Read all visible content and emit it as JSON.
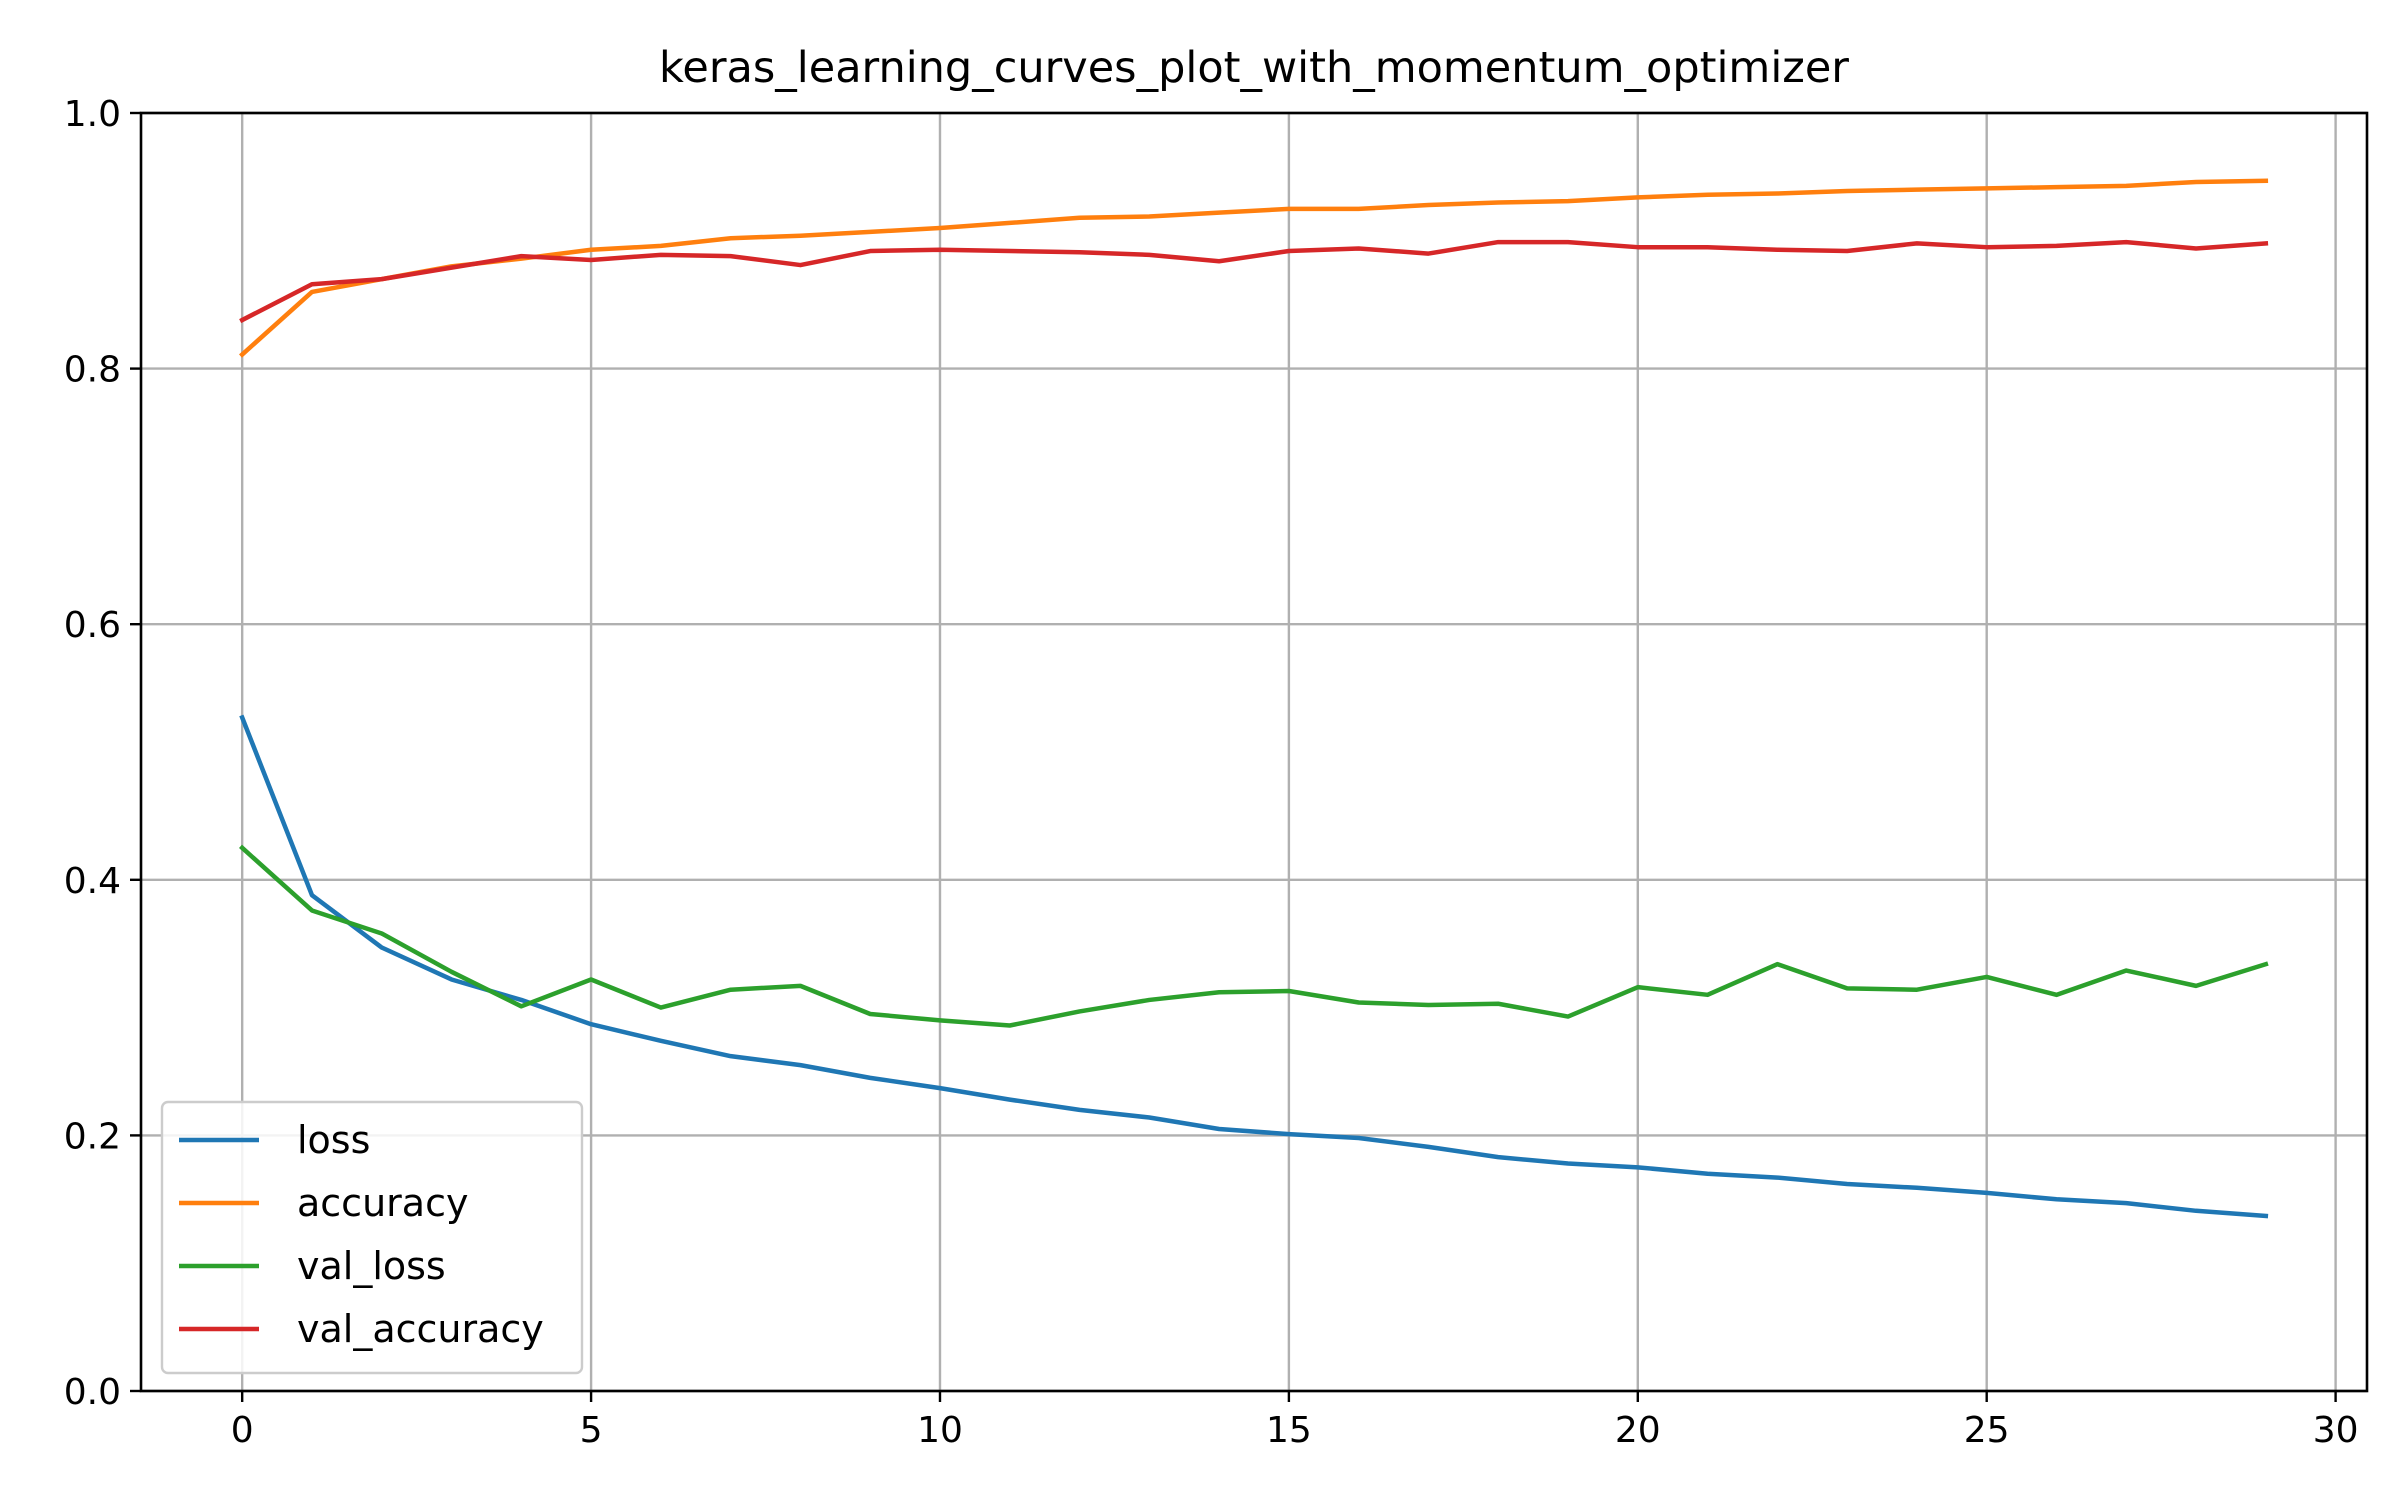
{
  "chart_data": {
    "type": "line",
    "title": "keras_learning_curves_plot_with_momentum_optimizer",
    "xlabel": "",
    "ylabel": "",
    "xlim": [
      -1.45,
      30.45
    ],
    "ylim": [
      0.0,
      1.0
    ],
    "x_ticks": [
      0,
      5,
      10,
      15,
      20,
      25,
      30
    ],
    "y_ticks": [
      0.0,
      0.2,
      0.4,
      0.6,
      0.8,
      1.0
    ],
    "x_tick_labels": [
      "0",
      "5",
      "10",
      "15",
      "20",
      "25",
      "30"
    ],
    "y_tick_labels": [
      "0.0",
      "0.2",
      "0.4",
      "0.6",
      "0.8",
      "1.0"
    ],
    "grid": true,
    "legend_position": "lower-left",
    "x": [
      0,
      1,
      2,
      3,
      4,
      5,
      6,
      7,
      8,
      9,
      10,
      11,
      12,
      13,
      14,
      15,
      16,
      17,
      18,
      19,
      20,
      21,
      22,
      23,
      24,
      25,
      26,
      27,
      28,
      29
    ],
    "series": [
      {
        "name": "loss",
        "color": "#1f77b4",
        "values": [
          0.527,
          0.388,
          0.347,
          0.322,
          0.306,
          0.287,
          0.274,
          0.262,
          0.255,
          0.245,
          0.237,
          0.228,
          0.22,
          0.214,
          0.205,
          0.201,
          0.198,
          0.191,
          0.183,
          0.178,
          0.175,
          0.17,
          0.167,
          0.162,
          0.159,
          0.155,
          0.15,
          0.147,
          0.141,
          0.137
        ]
      },
      {
        "name": "accuracy",
        "color": "#ff7f0e",
        "values": [
          0.811,
          0.86,
          0.87,
          0.88,
          0.886,
          0.893,
          0.896,
          0.902,
          0.904,
          0.907,
          0.91,
          0.914,
          0.918,
          0.919,
          0.922,
          0.925,
          0.925,
          0.928,
          0.93,
          0.931,
          0.934,
          0.936,
          0.937,
          0.939,
          0.94,
          0.941,
          0.942,
          0.943,
          0.946,
          0.947
        ]
      },
      {
        "name": "val_loss",
        "color": "#2ca02c",
        "values": [
          0.425,
          0.376,
          0.358,
          0.328,
          0.301,
          0.322,
          0.3,
          0.314,
          0.317,
          0.295,
          0.29,
          0.286,
          0.297,
          0.306,
          0.312,
          0.313,
          0.304,
          0.302,
          0.303,
          0.293,
          0.316,
          0.31,
          0.334,
          0.315,
          0.314,
          0.324,
          0.31,
          0.329,
          0.317,
          0.334
        ]
      },
      {
        "name": "val_accuracy",
        "color": "#d62728",
        "values": [
          0.838,
          0.866,
          0.87,
          0.879,
          0.888,
          0.885,
          0.889,
          0.888,
          0.881,
          0.892,
          0.893,
          0.892,
          0.891,
          0.889,
          0.884,
          0.892,
          0.894,
          0.89,
          0.899,
          0.899,
          0.895,
          0.895,
          0.893,
          0.892,
          0.898,
          0.895,
          0.896,
          0.899,
          0.894,
          0.898
        ]
      }
    ]
  }
}
